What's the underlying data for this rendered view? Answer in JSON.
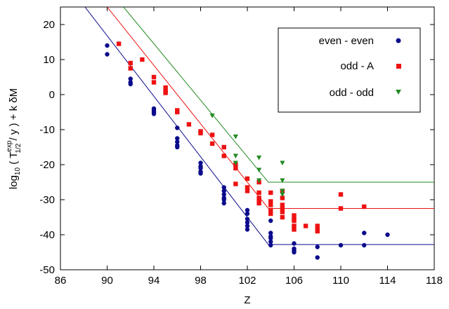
{
  "chart_data": {
    "type": "scatter",
    "xlabel": "Z",
    "ylabel": {
      "prefix": "log",
      "prefix_sub": "10",
      "open": " ( T",
      "sup": "exp",
      "sub": "1/2",
      "rest": " / y ) + k δM"
    },
    "xlim": [
      86,
      118
    ],
    "ylim": [
      -50,
      25
    ],
    "xticks": [
      86,
      90,
      94,
      98,
      102,
      106,
      110,
      114,
      118
    ],
    "yticks": [
      -50,
      -40,
      -30,
      -20,
      -10,
      0,
      10,
      20
    ],
    "grid": false,
    "legend_position": "top-right",
    "series": [
      {
        "name": "even - even",
        "marker": "circle",
        "color": "#0b0b8c",
        "points": [
          [
            90,
            14
          ],
          [
            90,
            11.5
          ],
          [
            92,
            4.5
          ],
          [
            92,
            3.5
          ],
          [
            92,
            3
          ],
          [
            94,
            -4
          ],
          [
            94,
            -4.5
          ],
          [
            94,
            -5
          ],
          [
            94,
            -5.5
          ],
          [
            96,
            -9.5
          ],
          [
            96,
            -12.5
          ],
          [
            96,
            -13.5
          ],
          [
            96,
            -14.5
          ],
          [
            96,
            -15
          ],
          [
            98,
            -19.5
          ],
          [
            98,
            -20.5
          ],
          [
            98,
            -21
          ],
          [
            98,
            -22
          ],
          [
            98,
            -22.5
          ],
          [
            100,
            -26.5
          ],
          [
            100,
            -27.5
          ],
          [
            100,
            -28.5
          ],
          [
            100,
            -29.5
          ],
          [
            100,
            -30
          ],
          [
            100,
            -31
          ],
          [
            102,
            -33
          ],
          [
            102,
            -34
          ],
          [
            102,
            -35.5
          ],
          [
            102,
            -36.5
          ],
          [
            102,
            -37.5
          ],
          [
            102,
            -38.5
          ],
          [
            104,
            -36
          ],
          [
            104,
            -39.5
          ],
          [
            104,
            -40.5
          ],
          [
            104,
            -41
          ],
          [
            104,
            -42
          ],
          [
            104,
            -43
          ],
          [
            106,
            -37.5
          ],
          [
            106,
            -42.5
          ],
          [
            106,
            -44
          ],
          [
            106,
            -44.5
          ],
          [
            106,
            -45
          ],
          [
            108,
            -43.5
          ],
          [
            108,
            -46.5
          ],
          [
            110,
            -43
          ],
          [
            112,
            -39.5
          ],
          [
            112,
            -43
          ],
          [
            114,
            -40
          ]
        ]
      },
      {
        "name": "odd - A",
        "marker": "square",
        "color": "#ee1111",
        "points": [
          [
            91,
            14.5
          ],
          [
            92,
            9
          ],
          [
            92,
            7.5
          ],
          [
            93,
            10
          ],
          [
            94,
            5
          ],
          [
            94,
            3.5
          ],
          [
            95,
            2
          ],
          [
            95,
            1
          ],
          [
            95,
            0.5
          ],
          [
            96,
            -4.5
          ],
          [
            96,
            -5
          ],
          [
            97,
            -8.5
          ],
          [
            98,
            -10.5
          ],
          [
            98,
            -11
          ],
          [
            99,
            -11.5
          ],
          [
            99,
            -14
          ],
          [
            100,
            -15
          ],
          [
            100,
            -17.5
          ],
          [
            101,
            -20
          ],
          [
            101,
            -21
          ],
          [
            101,
            -25.5
          ],
          [
            102,
            -24
          ],
          [
            102,
            -26.5
          ],
          [
            102,
            -27.5
          ],
          [
            103,
            -25
          ],
          [
            103,
            -28
          ],
          [
            103,
            -29.5
          ],
          [
            103,
            -30
          ],
          [
            103,
            -31
          ],
          [
            104,
            -28
          ],
          [
            104,
            -30.5
          ],
          [
            104,
            -31.5
          ],
          [
            104,
            -33
          ],
          [
            104,
            -34
          ],
          [
            105,
            -27.5
          ],
          [
            105,
            -29.5
          ],
          [
            105,
            -31.5
          ],
          [
            105,
            -32.5
          ],
          [
            105,
            -33.5
          ],
          [
            105,
            -35
          ],
          [
            106,
            -34.5
          ],
          [
            106,
            -35.5
          ],
          [
            106,
            -36
          ],
          [
            106,
            -37.5
          ],
          [
            106,
            -38.5
          ],
          [
            107,
            -37.5
          ],
          [
            108,
            -37.5
          ],
          [
            108,
            -38.5
          ],
          [
            108,
            -39
          ],
          [
            110,
            -28.5
          ],
          [
            110,
            -32.5
          ],
          [
            112,
            -32
          ]
        ]
      },
      {
        "name": "odd - odd",
        "marker": "triangle-down",
        "color": "#228b22",
        "points": [
          [
            99,
            -6
          ],
          [
            101,
            -12
          ],
          [
            101,
            -17.5
          ],
          [
            101,
            -19.5
          ],
          [
            103,
            -18
          ],
          [
            103,
            -21.5
          ],
          [
            103,
            -24.5
          ],
          [
            105,
            -19.5
          ],
          [
            105,
            -24.5
          ],
          [
            105,
            -27.5
          ],
          [
            105,
            -28.5
          ]
        ]
      }
    ],
    "fit_lines": [
      {
        "color": "#0b0b8c",
        "x": [
          88.1,
          103.8,
          118
        ],
        "y": [
          25,
          -42.8,
          -42.8
        ]
      },
      {
        "color": "#ee1111",
        "x": [
          90,
          103.8,
          118
        ],
        "y": [
          25,
          -32.5,
          -32.5
        ]
      },
      {
        "color": "#228b22",
        "x": [
          91.4,
          103.8,
          118
        ],
        "y": [
          25,
          -25,
          -25
        ]
      }
    ]
  }
}
